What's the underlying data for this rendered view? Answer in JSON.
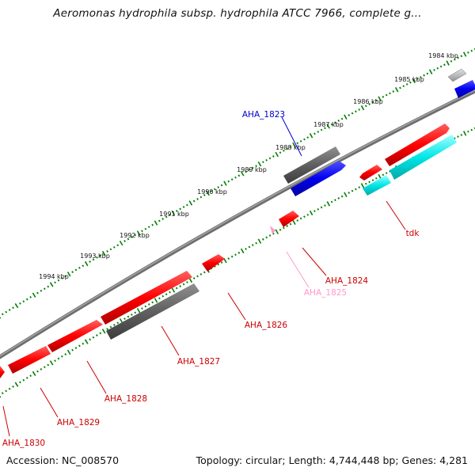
{
  "title": "Aeromonas hydrophila subsp. hydrophila ATCC 7966, complete g...",
  "footer": {
    "accession": "Accession: NC_008570",
    "summary": "Topology: circular; Length: 4,744,448 bp; Genes: 4,281"
  },
  "colors": {
    "red": "#ff0000",
    "blue": "#0000ee",
    "gray": "#606060",
    "light_gray": "#bcbcbc",
    "cyan": "#00e6e6",
    "pink": "#ff99cc",
    "tick": "#008000",
    "backbone": "#888888"
  },
  "kbp_ticks": [
    "1984 kbp",
    "1985 kbp",
    "1986 kbp",
    "1987 kbp",
    "1988 kbp",
    "1989 kbp",
    "1990 kbp",
    "1991 kbp",
    "1992 kbp",
    "1993 kbp",
    "1994 kbp"
  ],
  "gene_labels": [
    {
      "text": "AHA_1823",
      "color": "#0000cc"
    },
    {
      "text": "AHA_1824",
      "color": "#cc0000"
    },
    {
      "text": "AHA_1825",
      "color": "#ff99cc"
    },
    {
      "text": "AHA_1826",
      "color": "#cc0000"
    },
    {
      "text": "AHA_1827",
      "color": "#cc0000"
    },
    {
      "text": "AHA_1828",
      "color": "#cc0000"
    },
    {
      "text": "AHA_1829",
      "color": "#cc0000"
    },
    {
      "text": "AHA_1830",
      "color": "#cc0000"
    },
    {
      "text": "tdk",
      "color": "#cc0000"
    }
  ]
}
